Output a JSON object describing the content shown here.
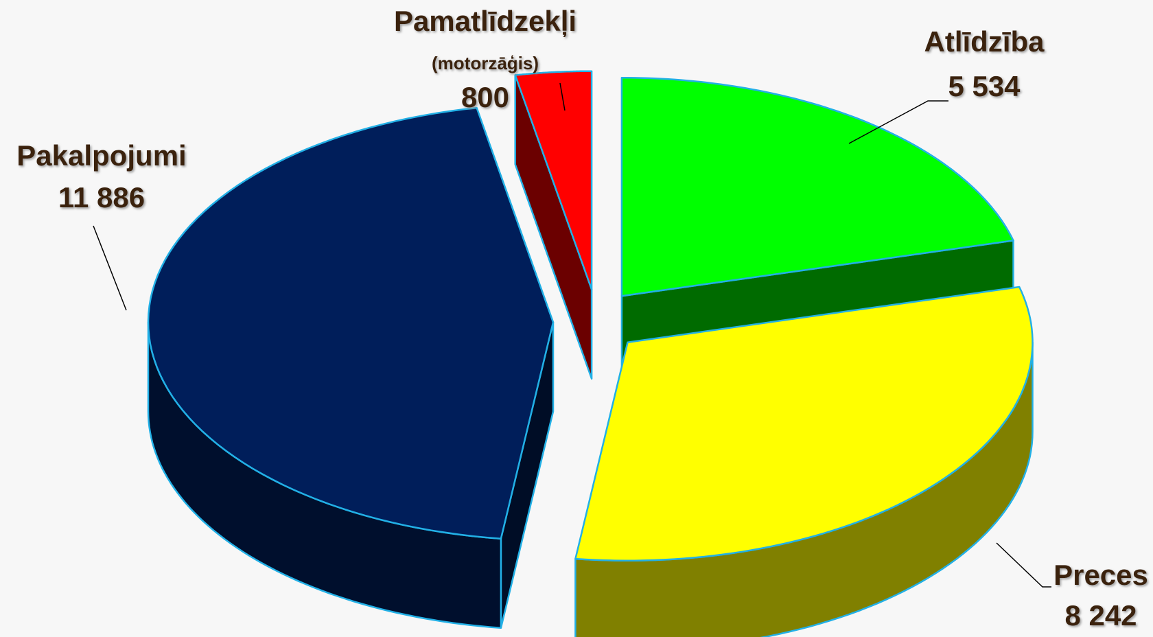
{
  "chart_data": {
    "type": "pie3d",
    "categories": [
      "Pamatlīdzekļi",
      "Atlīdzība",
      "Preces",
      "Pakalpojumi"
    ],
    "category_notes": [
      "(motorzāģis)",
      null,
      null,
      null
    ],
    "values": [
      800,
      5534,
      8242,
      11886
    ],
    "value_labels": [
      "800",
      "5 534",
      "8 242",
      "11 886"
    ],
    "colors": [
      "#ff0000",
      "#00ff00",
      "#ffff00",
      "#001e5a"
    ],
    "edge_color": "#22b0e6"
  }
}
